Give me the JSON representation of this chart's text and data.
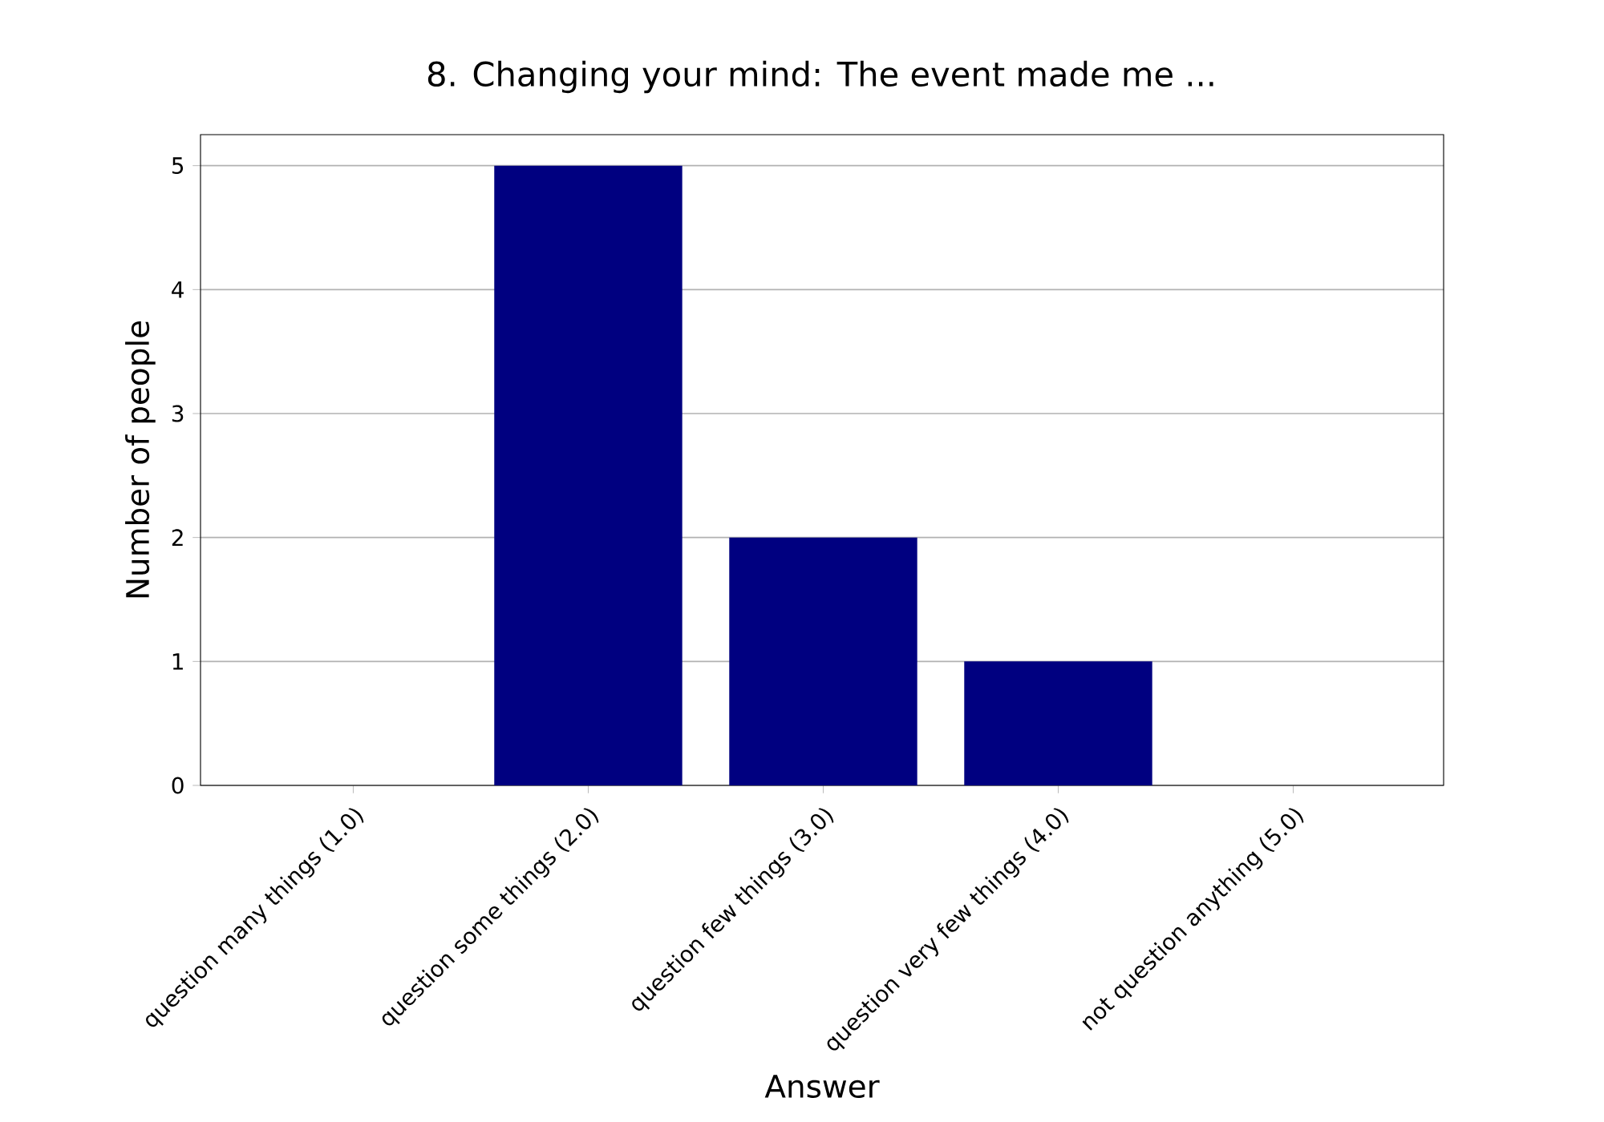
{
  "chart_data": {
    "type": "bar",
    "title": "8. Changing your mind: The event made me ...",
    "xlabel": "Answer",
    "ylabel": "Number of people",
    "categories": [
      "question many things (1.0)",
      "question some things (2.0)",
      "question few things (3.0)",
      "question very few things (4.0)",
      "not question anything (5.0)"
    ],
    "values": [
      0,
      5,
      2,
      1,
      0
    ],
    "color": "#000080",
    "ylim": [
      0,
      5.25
    ],
    "yticks": [
      0,
      1,
      2,
      3,
      4,
      5
    ],
    "grid": "y"
  }
}
